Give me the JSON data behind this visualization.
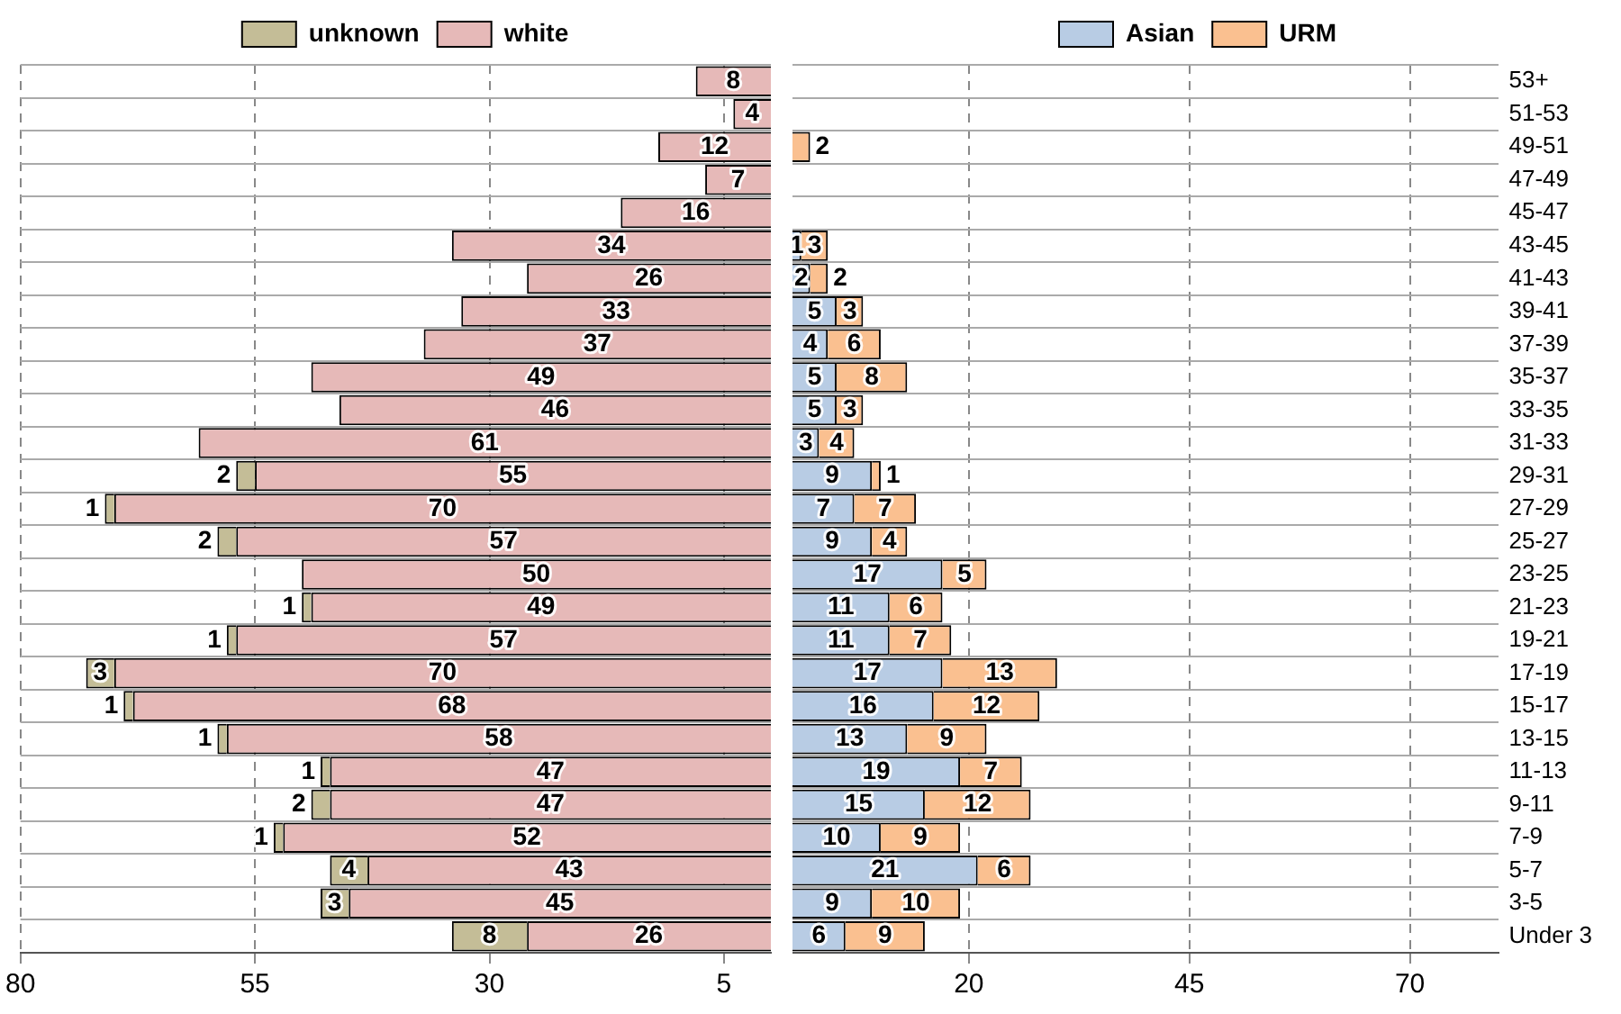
{
  "chart_data": [
    {
      "type": "bar",
      "orientation": "horizontal",
      "stacked": true,
      "grid": true,
      "legend": "top",
      "categories": [
        null,
        null,
        null,
        null,
        null,
        null,
        null,
        null,
        null,
        null,
        null,
        null,
        null,
        null,
        null,
        null,
        null,
        null,
        null,
        null,
        null,
        null,
        null,
        null,
        null,
        null,
        null
      ],
      "xlim": [
        80,
        0
      ],
      "xticks": [
        80,
        55,
        30,
        5
      ],
      "data_labels": true,
      "series": [
        {
          "name": "white",
          "color": "#e6b9b8",
          "values": [
            8,
            4,
            12,
            7,
            16,
            34,
            26,
            33,
            37,
            49,
            46,
            61,
            55,
            70,
            57,
            50,
            49,
            57,
            70,
            68,
            58,
            47,
            47,
            52,
            43,
            45,
            26
          ]
        },
        {
          "name": "unknown",
          "color": "#c4bd97",
          "values": [
            null,
            null,
            null,
            null,
            null,
            null,
            null,
            null,
            null,
            null,
            null,
            null,
            2,
            1,
            2,
            null,
            1,
            1,
            3,
            1,
            1,
            1,
            2,
            1,
            4,
            3,
            8
          ]
        }
      ]
    },
    {
      "type": "bar",
      "orientation": "horizontal",
      "stacked": true,
      "grid": true,
      "legend": "top",
      "categories": [
        "53+",
        "51-53",
        "49-51",
        "47-49",
        "45-47",
        "43-45",
        "41-43",
        "39-41",
        "37-39",
        "35-37",
        "33-35",
        "31-33",
        "29-31",
        "27-29",
        "25-27",
        "23-25",
        "21-23",
        "19-21",
        "17-19",
        "15-17",
        "13-15",
        "11-13",
        "9-11",
        "7-9",
        "5-7",
        "3-5",
        "Under 3"
      ],
      "xlim": [
        0,
        80
      ],
      "xticks": [
        20,
        45,
        70
      ],
      "data_labels": true,
      "series": [
        {
          "name": "Asian",
          "color": "#b8cce4",
          "values": [
            null,
            null,
            null,
            null,
            null,
            1,
            2,
            5,
            4,
            5,
            5,
            3,
            9,
            7,
            9,
            17,
            11,
            11,
            17,
            16,
            13,
            19,
            15,
            10,
            21,
            9,
            6
          ]
        },
        {
          "name": "URM",
          "color": "#fac090",
          "values": [
            null,
            null,
            2,
            null,
            null,
            3,
            2,
            3,
            6,
            8,
            3,
            4,
            1,
            7,
            4,
            5,
            6,
            7,
            13,
            12,
            9,
            7,
            12,
            9,
            6,
            10,
            9
          ]
        }
      ]
    }
  ]
}
